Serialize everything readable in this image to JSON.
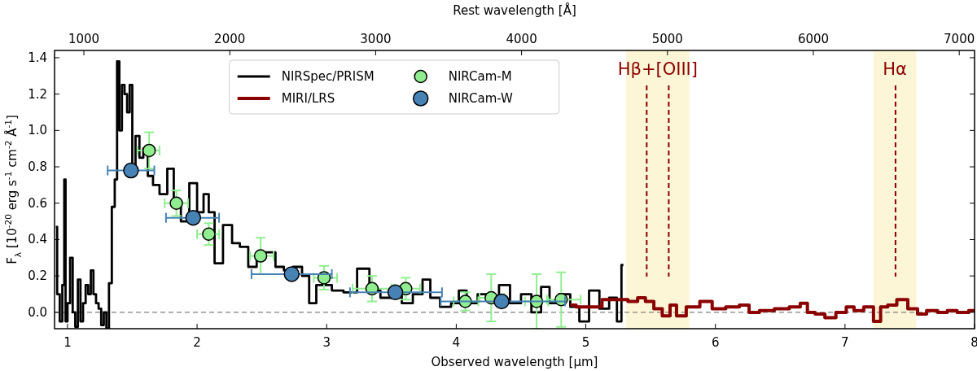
{
  "chart_data": {
    "type": "step",
    "xlabel": "Observed wavelength [μm]",
    "x2label": "Rest wavelength [Å]",
    "ylabel": "F$_{λ}$ [10$^{-20}$ erg s$^{-1}$ cm$^{-2}$ Å$^{-1}$]",
    "xlim": [
      0.9,
      8
    ],
    "xticks": [
      1,
      2,
      3,
      4,
      5,
      6,
      7,
      8
    ],
    "x2lim": [
      799,
      7105
    ],
    "x2ticks": [
      1000,
      2000,
      3000,
      4000,
      5000,
      6000,
      7000
    ],
    "ylim": [
      -0.09,
      1.44
    ],
    "yticks": [
      {
        "value": 0,
        "label": "0.0"
      },
      {
        "value": 0.2,
        "label": "0.2"
      },
      {
        "value": 0.4,
        "label": "0.4"
      },
      {
        "value": 0.6,
        "label": "0.6"
      },
      {
        "value": 0.8,
        "label": "0.8"
      },
      {
        "value": 1.0,
        "label": "1.0"
      },
      {
        "value": 1.2,
        "label": "1.2"
      },
      {
        "value": 1.4,
        "label": "1.4"
      }
    ],
    "legend": "top",
    "bands": [
      {
        "axis": "x",
        "from": 5.31,
        "to": 5.8,
        "label": "Hβ+[OIII]",
        "color": "#fdf6d6"
      },
      {
        "axis": "x",
        "from": 7.22,
        "to": 7.55,
        "label": "Hα",
        "color": "#fdf6d6"
      }
    ],
    "ref_lines": [
      {
        "axis": "x",
        "value": 5.47,
        "color": "#8b0000",
        "line_style": "dashed"
      },
      {
        "axis": "x",
        "value": 5.64,
        "color": "#8b0000",
        "line_style": "dashed"
      },
      {
        "axis": "x",
        "value": 7.39,
        "color": "#8b0000",
        "line_style": "dashed"
      },
      {
        "axis": "y",
        "value": 0,
        "color": "#808080",
        "line_style": "dashed"
      }
    ],
    "series": [
      {
        "name": "NIRSpec/PRISM",
        "color": "#000000",
        "x": [
          0.91,
          0.93,
          0.95,
          0.97,
          0.98,
          0.99,
          1.01,
          1.03,
          1.05,
          1.07,
          1.09,
          1.11,
          1.13,
          1.15,
          1.17,
          1.19,
          1.21,
          1.23,
          1.25,
          1.27,
          1.29,
          1.31,
          1.33,
          1.354,
          1.375,
          1.39,
          1.41,
          1.43,
          1.45,
          1.47,
          1.49,
          1.51,
          1.54,
          1.57,
          1.6,
          1.64,
          1.68,
          1.74,
          1.8,
          1.84,
          1.91,
          1.97,
          2.03,
          2.07,
          2.11,
          2.16,
          2.24,
          2.3,
          2.36,
          2.43,
          2.49,
          2.57,
          2.64,
          2.7,
          2.78,
          2.84,
          2.89,
          2.95,
          3.0,
          3.08,
          3.18,
          3.29,
          3.37,
          3.46,
          3.54,
          3.62,
          3.71,
          3.77,
          3.83,
          3.92,
          4.0,
          4.04,
          4.12,
          4.21,
          4.29,
          4.37,
          4.46,
          4.54,
          4.62,
          4.69,
          4.75,
          4.84,
          4.92,
          4.98,
          5.07,
          5.14,
          5.22,
          5.26,
          5.29
        ],
        "values": [
          0.47,
          0.1,
          -0.05,
          0.15,
          0.73,
          -0.05,
          0.05,
          0.3,
          0.0,
          -0.08,
          0.18,
          -0.05,
          0.05,
          0.15,
          0.1,
          0.23,
          0.1,
          0.05,
          0.02,
          -0.07,
          0.0,
          -0.09,
          0.16,
          0.58,
          0.73,
          1.38,
          1.0,
          1.25,
          1.2,
          1.1,
          1.25,
          0.78,
          0.97,
          0.85,
          0.9,
          0.75,
          0.7,
          0.65,
          0.79,
          0.6,
          0.5,
          0.71,
          0.55,
          0.65,
          0.55,
          0.27,
          0.48,
          0.38,
          0.36,
          0.25,
          0.3,
          0.33,
          0.25,
          0.23,
          0.25,
          0.2,
          0.05,
          0.15,
          0.15,
          0.12,
          0.11,
          0.24,
          0.12,
          0.08,
          0.1,
          0.05,
          0.1,
          0.18,
          0.08,
          0.03,
          0.05,
          0.12,
          0.05,
          0.1,
          0.08,
          0.15,
          0.05,
          0.1,
          0.0,
          0.14,
          0.05,
          0.1,
          0.03,
          -0.05,
          0.12,
          0.02,
          0.08,
          -0.05,
          0.26
        ]
      },
      {
        "name": "MIRI/LRS",
        "color": "#8b0000",
        "x": [
          4.88,
          4.97,
          5.28,
          5.37,
          5.43,
          5.49,
          5.56,
          5.62,
          5.68,
          5.72,
          5.83,
          5.93,
          6.02,
          6.14,
          6.23,
          6.29,
          6.39,
          6.52,
          6.62,
          6.69,
          6.73,
          6.81,
          6.88,
          6.98,
          7.04,
          7.1,
          7.19,
          7.25,
          7.3,
          7.36,
          7.44,
          7.53,
          7.59,
          7.67,
          7.76,
          7.82,
          7.91,
          8.0
        ],
        "values": [
          0.04,
          0.03,
          0.07,
          0.06,
          0.08,
          0.06,
          0.02,
          -0.02,
          0.04,
          -0.02,
          0.03,
          0.06,
          0.02,
          0.03,
          0.04,
          0.0,
          0.01,
          0.02,
          0.03,
          0.05,
          0.0,
          -0.01,
          -0.03,
          0.0,
          0.03,
          0.01,
          0.03,
          -0.05,
          0.03,
          0.04,
          0.07,
          0.02,
          -0.01,
          0.01,
          0.0,
          0.01,
          0.0,
          0.01
        ]
      },
      {
        "name": "NIRCam-M",
        "type": "scatter",
        "marker": "circle",
        "color": "#90ee90",
        "x": [
          1.63,
          1.84,
          2.09,
          2.49,
          2.98,
          3.35,
          3.61,
          4.07,
          4.27,
          4.62,
          4.81
        ],
        "values": [
          0.89,
          0.6,
          0.43,
          0.31,
          0.19,
          0.13,
          0.13,
          0.06,
          0.08,
          0.06,
          0.07
        ],
        "errors": [
          0.1,
          0.07,
          0.06,
          0.1,
          0.065,
          0.07,
          0.06,
          0.05,
          0.13,
          0.15,
          0.15
        ],
        "xerrors": [
          [
            1.54,
            1.71
          ],
          [
            1.75,
            1.93
          ],
          [
            2.0,
            2.17
          ],
          [
            2.41,
            2.59
          ],
          [
            2.9,
            3.08
          ],
          [
            3.2,
            3.5
          ],
          [
            3.52,
            3.72
          ],
          [
            3.98,
            4.17
          ],
          [
            4.18,
            4.37
          ],
          [
            4.53,
            4.71
          ],
          [
            4.7,
            4.96
          ]
        ]
      },
      {
        "name": "NIRCam-W",
        "type": "scatter",
        "marker": "circle",
        "color": "#4682b4",
        "x": [
          1.49,
          1.97,
          2.73,
          3.53,
          4.35
        ],
        "values": [
          0.78,
          0.52,
          0.21,
          0.11,
          0.06
        ],
        "errors": [
          0.03,
          0.03,
          0.02,
          0.02,
          0.02
        ],
        "xerrors": [
          [
            1.31,
            1.67
          ],
          [
            1.76,
            2.17
          ],
          [
            2.42,
            3.04
          ],
          [
            3.18,
            3.89
          ],
          [
            3.88,
            4.84
          ]
        ]
      }
    ]
  }
}
